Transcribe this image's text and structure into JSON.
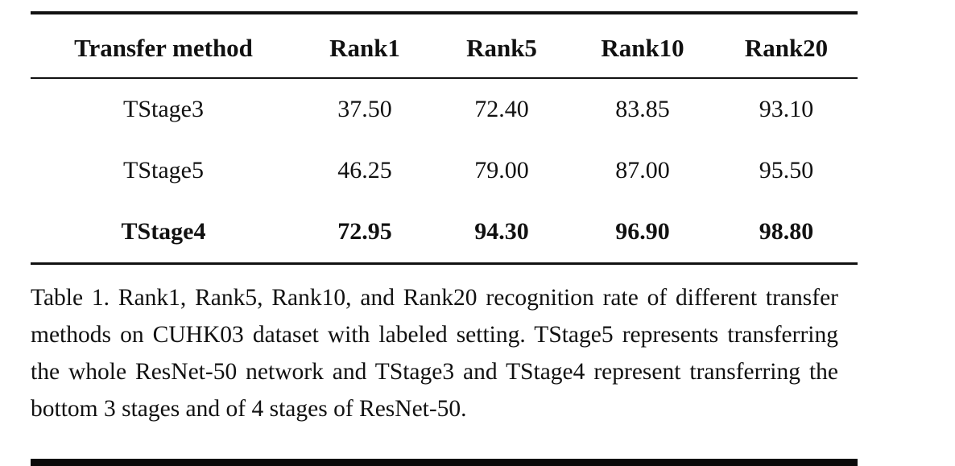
{
  "table": {
    "header": [
      "Transfer method",
      "Rank1",
      "Rank5",
      "Rank10",
      "Rank20"
    ],
    "rows": [
      {
        "method": "TStage3",
        "values": [
          "37.50",
          "72.40",
          "83.85",
          "93.10"
        ],
        "bold": false
      },
      {
        "method": "TStage5",
        "values": [
          "46.25",
          "79.00",
          "87.00",
          "95.50"
        ],
        "bold": false
      },
      {
        "method": "TStage4",
        "values": [
          "72.95",
          "94.30",
          "96.90",
          "98.80"
        ],
        "bold": true
      }
    ]
  },
  "caption": "Table 1. Rank1, Rank5, Rank10, and Rank20 recognition rate of different transfer methods on CUHK03 dataset with labeled setting. TStage5 represents transferring the whole ResNet-50 network and TStage3 and TStage4 represent transferring the bottom 3 stages and of 4 stages of ResNet-50."
}
